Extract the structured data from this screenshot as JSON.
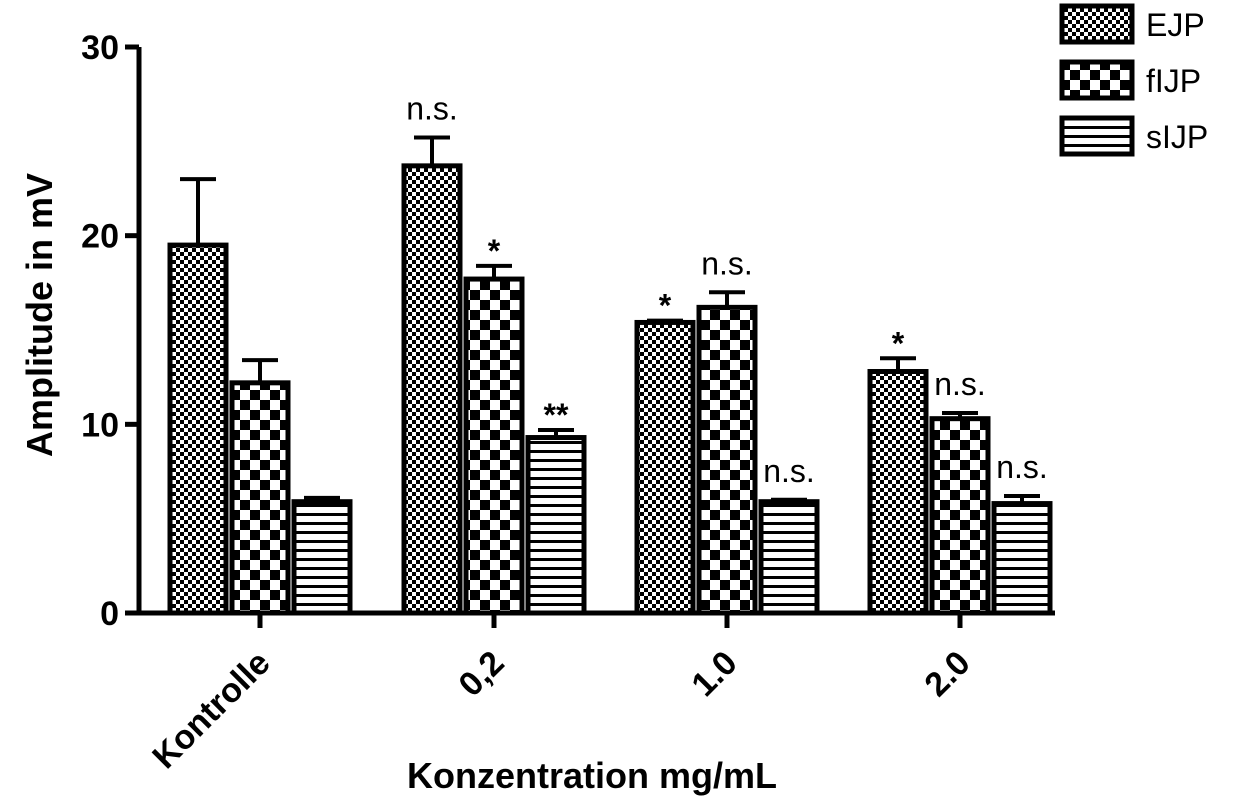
{
  "chart_data": {
    "type": "bar",
    "xlabel": "Konzentration mg/mL",
    "ylabel": "Amplitude in mV",
    "ylim": [
      0,
      30
    ],
    "yticks": [
      "0",
      "10",
      "20",
      "30"
    ],
    "categories": [
      "Kontrolle",
      "0,2",
      "1.0",
      "2.0"
    ],
    "series": [
      {
        "name": "EJP",
        "values": [
          19.5,
          23.7,
          15.4,
          12.8
        ],
        "errors": [
          3.5,
          1.5,
          0.1,
          0.7
        ],
        "significance": [
          "",
          "n.s.",
          "*",
          "*"
        ],
        "pattern": "fine-checker"
      },
      {
        "name": "fIJP",
        "values": [
          12.2,
          17.7,
          16.2,
          10.3
        ],
        "errors": [
          1.2,
          0.7,
          0.8,
          0.3
        ],
        "significance": [
          "",
          "*",
          "n.s.",
          "n.s."
        ],
        "pattern": "coarse-checker"
      },
      {
        "name": "sIJP",
        "values": [
          5.9,
          9.3,
          5.9,
          5.8
        ],
        "errors": [
          0.2,
          0.4,
          0.1,
          0.4
        ],
        "significance": [
          "",
          "**",
          "n.s.",
          "n.s."
        ],
        "pattern": "horizontal-stripes"
      }
    ],
    "grid": false,
    "legend": "top-right"
  }
}
